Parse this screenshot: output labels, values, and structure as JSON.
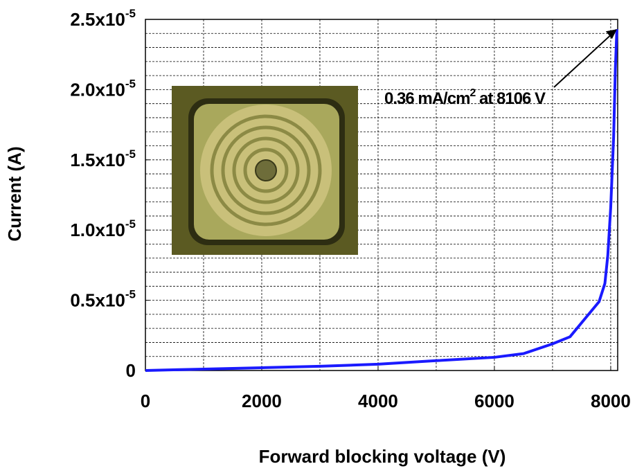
{
  "chart_data": {
    "type": "line",
    "xlabel": "Forward blocking voltage (V)",
    "ylabel": "Current (A)",
    "xlim": [
      0,
      8120
    ],
    "ylim": [
      0,
      2.5e-05
    ],
    "xticks": [
      0,
      2000,
      4000,
      6000,
      8000
    ],
    "yticks": [
      0,
      {
        "value": 5e-06,
        "label": "0.5x10",
        "superscript": "-5"
      },
      {
        "value": 1e-05,
        "label": "1.0x10",
        "superscript": "-5"
      },
      {
        "value": 1.5e-05,
        "label": "1.5x10",
        "superscript": "-5"
      },
      {
        "value": 2e-05,
        "label": "2.0x10",
        "superscript": "-5"
      },
      {
        "value": 2.5e-05,
        "label": "2.5x10",
        "superscript": "-5"
      }
    ],
    "grid": true,
    "grid_xticks": [
      1000,
      2000,
      3000,
      4000,
      5000,
      6000,
      7000,
      8000
    ],
    "grid_yticks": [
      1e-06,
      2e-06,
      3e-06,
      4e-06,
      5e-06,
      6e-06,
      7e-06,
      8e-06,
      9e-06,
      1e-05,
      1.1e-05,
      1.2e-05,
      1.3e-05,
      1.4e-05,
      1.5e-05,
      1.6e-05,
      1.7e-05,
      1.8e-05,
      1.9e-05,
      2e-05,
      2.1e-05,
      2.2e-05,
      2.3e-05,
      2.4e-05
    ],
    "series": [
      {
        "color": "#1a1aff",
        "x": [
          0,
          1000,
          2000,
          3000,
          4000,
          5000,
          6000,
          6500,
          7000,
          7300,
          7600,
          7800,
          7900,
          7950,
          8000,
          8050,
          8080,
          8106
        ],
        "values": [
          0,
          1e-07,
          2e-07,
          3e-07,
          4.5e-07,
          7e-07,
          9.4e-07,
          1.2e-06,
          1.9e-06,
          2.4e-06,
          3.9e-06,
          4.9e-06,
          6.2e-06,
          8.2e-06,
          1.16e-05,
          1.66e-05,
          2.15e-05,
          2.43e-05
        ]
      }
    ],
    "annotation": {
      "text": "0.36 mA/cm",
      "superscript": "2",
      "text_after": " at 8106 V",
      "xy": [
        8106,
        2.43e-05
      ]
    }
  }
}
